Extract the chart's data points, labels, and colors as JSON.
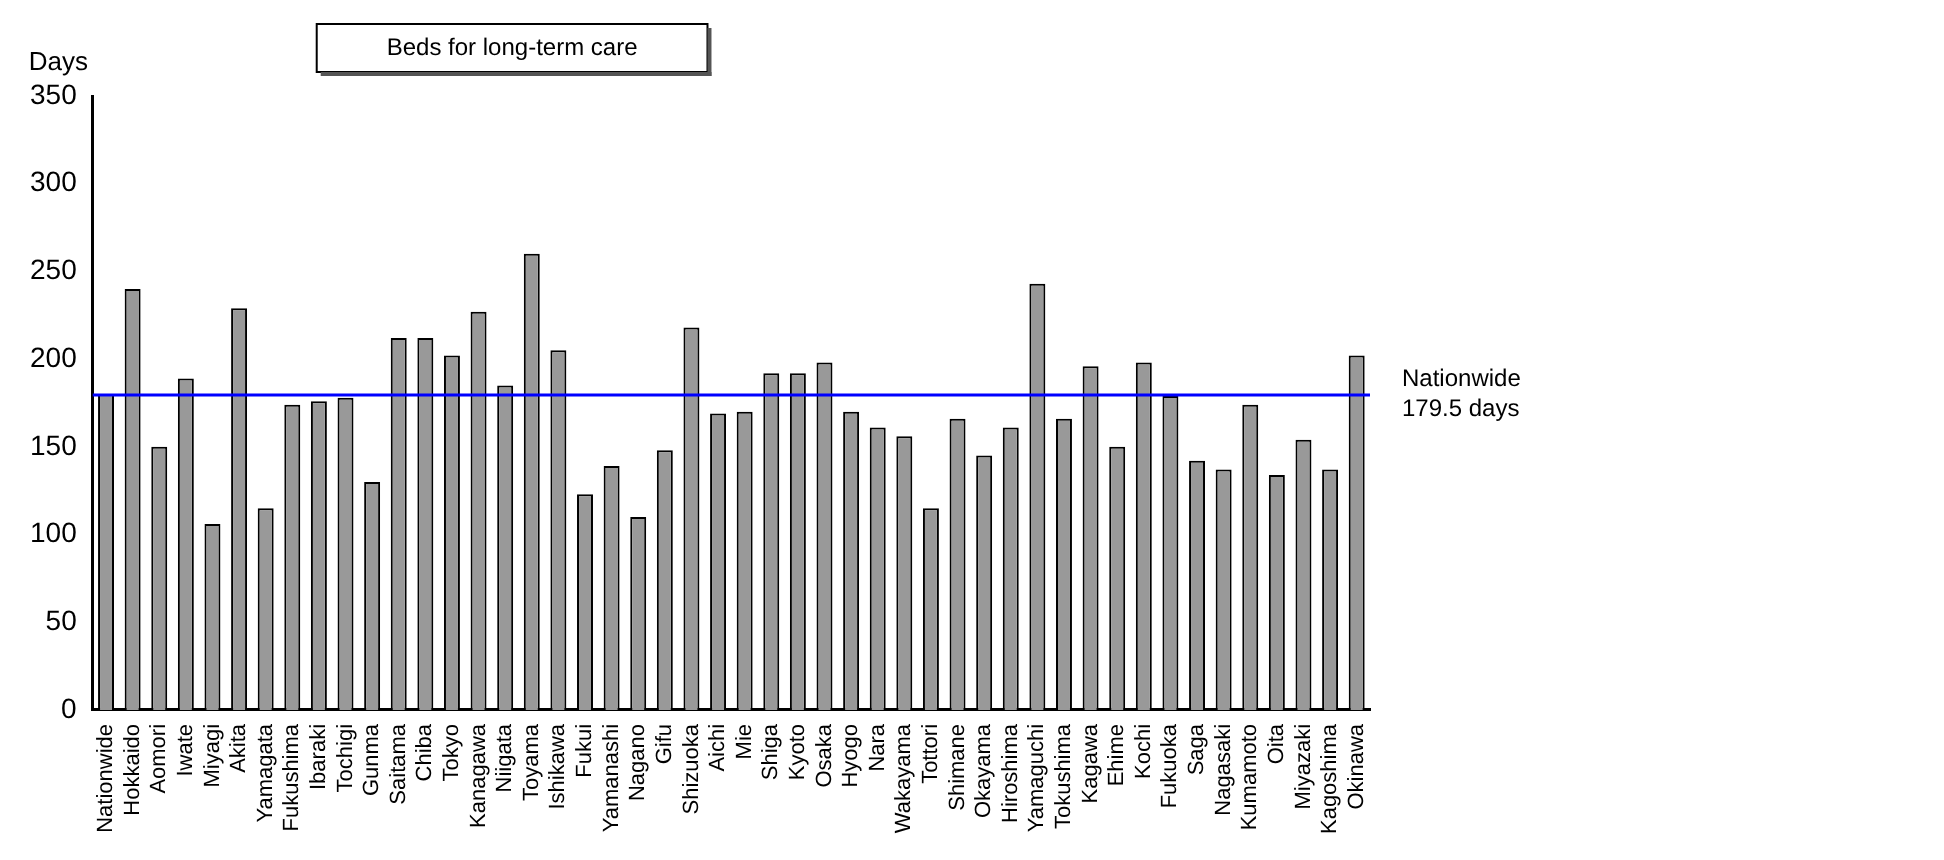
{
  "chart_data": {
    "type": "bar",
    "title": "Beds for long-term care",
    "ylabel": "Days",
    "categories": [
      "Nationwide",
      "Hokkaido",
      "Aomori",
      "Iwate",
      "Miyagi",
      "Akita",
      "Yamagata",
      "Fukushima",
      "Ibaraki",
      "Tochigi",
      "Gunma",
      "Saitama",
      "Chiba",
      "Tokyo",
      "Kanagawa",
      "Niigata",
      "Toyama",
      "Ishikawa",
      "Fukui",
      "Yamanashi",
      "Nagano",
      "Gifu",
      "Shizuoka",
      "Aichi",
      "Mie",
      "Shiga",
      "Kyoto",
      "Osaka",
      "Hyogo",
      "Nara",
      "Wakayama",
      "Tottori",
      "Shimane",
      "Okayama",
      "Hiroshima",
      "Yamaguchi",
      "Tokushima",
      "Kagawa",
      "Ehime",
      "Kochi",
      "Fukuoka",
      "Saga",
      "Nagasaki",
      "Kumamoto",
      "Oita",
      "Miyazaki",
      "Kagoshima",
      "Okinawa"
    ],
    "values": [
      180,
      240,
      150,
      189,
      106,
      229,
      115,
      174,
      176,
      178,
      130,
      212,
      212,
      202,
      227,
      185,
      260,
      205,
      123,
      139,
      110,
      148,
      218,
      169,
      170,
      192,
      192,
      198,
      170,
      161,
      156,
      115,
      166,
      145,
      161,
      243,
      166,
      196,
      150,
      198,
      179,
      142,
      137,
      174,
      134,
      154,
      137,
      202
    ],
    "color": "#999999",
    "ylim": [
      0,
      350
    ],
    "yticks": [
      0,
      50,
      100,
      150,
      200,
      250,
      300,
      350
    ],
    "ref_lines": [
      {
        "axis": "y",
        "value": 179.5,
        "label": "Nationwide\n179.5 days",
        "color": "#0000ff"
      }
    ],
    "grid": false,
    "legend": false
  }
}
